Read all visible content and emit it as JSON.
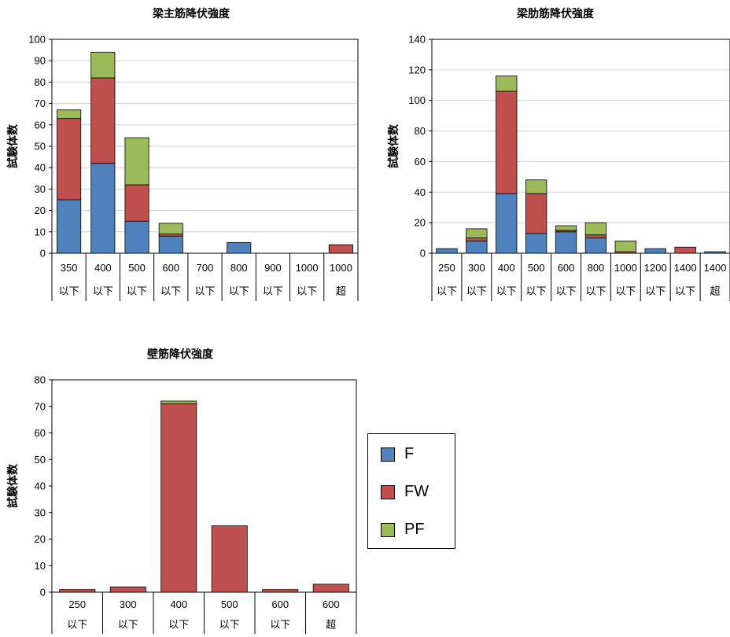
{
  "colors": {
    "F": "#4f81bd",
    "FW": "#c0504d",
    "PF": "#9bbb59"
  },
  "legend": [
    {
      "key": "F",
      "label": "F"
    },
    {
      "key": "FW",
      "label": "FW"
    },
    {
      "key": "PF",
      "label": "PF"
    }
  ],
  "chart_data": [
    {
      "type": "bar",
      "stacked": true,
      "title": "梁主筋降伏強度",
      "ylabel": "試験体数",
      "ylim": [
        0,
        100
      ],
      "ytick_step": 10,
      "grid": true,
      "categories": [
        [
          "350",
          "以下"
        ],
        [
          "400",
          "以下"
        ],
        [
          "500",
          "以下"
        ],
        [
          "600",
          "以下"
        ],
        [
          "700",
          "以下"
        ],
        [
          "800",
          "以下"
        ],
        [
          "900",
          "以下"
        ],
        [
          "1000",
          "以下"
        ],
        [
          "1000",
          "超"
        ]
      ],
      "series": [
        {
          "name": "F",
          "values": [
            25,
            42,
            15,
            8,
            0,
            5,
            0,
            0,
            0
          ]
        },
        {
          "name": "FW",
          "values": [
            38,
            40,
            17,
            1,
            0,
            0,
            0,
            0,
            4
          ]
        },
        {
          "name": "PF",
          "values": [
            4,
            12,
            22,
            5,
            0,
            0,
            0,
            0,
            0
          ]
        }
      ]
    },
    {
      "type": "bar",
      "stacked": true,
      "title": "梁肋筋降伏強度",
      "ylabel": "試験体数",
      "ylim": [
        0,
        140
      ],
      "ytick_step": 20,
      "grid": true,
      "categories": [
        [
          "250",
          "以下"
        ],
        [
          "300",
          "以下"
        ],
        [
          "400",
          "以下"
        ],
        [
          "500",
          "以下"
        ],
        [
          "600",
          "以下"
        ],
        [
          "800",
          "以下"
        ],
        [
          "1000",
          "以下"
        ],
        [
          "1200",
          "以下"
        ],
        [
          "1400",
          "以下"
        ],
        [
          "1400",
          "超"
        ]
      ],
      "series": [
        {
          "name": "F",
          "values": [
            3,
            8,
            39,
            13,
            14,
            10,
            0,
            3,
            0,
            1
          ]
        },
        {
          "name": "FW",
          "values": [
            0,
            2,
            67,
            26,
            1,
            2,
            1,
            0,
            4,
            0
          ]
        },
        {
          "name": "PF",
          "values": [
            0,
            6,
            10,
            9,
            3,
            8,
            7,
            0,
            0,
            0
          ]
        }
      ]
    },
    {
      "type": "bar",
      "stacked": true,
      "title": "壁筋降伏強度",
      "ylabel": "試験体数",
      "ylim": [
        0,
        80
      ],
      "ytick_step": 10,
      "grid": false,
      "categories": [
        [
          "250",
          "以下"
        ],
        [
          "300",
          "以下"
        ],
        [
          "400",
          "以下"
        ],
        [
          "500",
          "以下"
        ],
        [
          "600",
          "以下"
        ],
        [
          "600",
          "超"
        ]
      ],
      "series": [
        {
          "name": "F",
          "values": [
            0,
            0,
            0,
            0,
            0,
            0
          ]
        },
        {
          "name": "FW",
          "values": [
            1,
            2,
            71,
            25,
            1,
            3
          ]
        },
        {
          "name": "PF",
          "values": [
            0,
            0,
            1,
            0,
            0,
            0
          ]
        }
      ]
    }
  ]
}
